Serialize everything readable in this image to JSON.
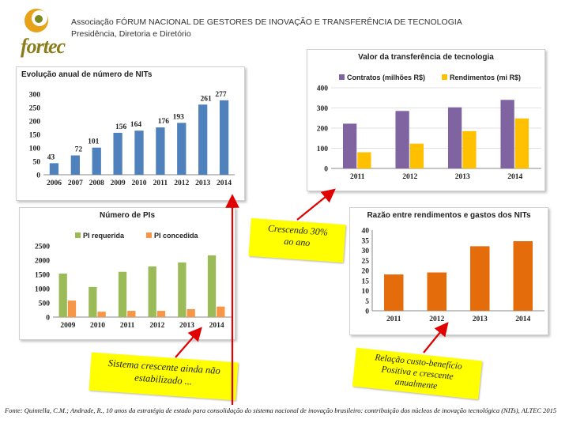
{
  "header": {
    "org": "Associação FÓRUM NACIONAL DE GESTORES DE INOVAÇÃO E TRANSFERÊNCIA DE TECNOLOGIA",
    "subtitle": "Presidência, Diretoria e Diretório",
    "logo_text": "fortec"
  },
  "notes": {
    "growth_line1": "Crescendo 30%",
    "growth_line2": "ao ano",
    "system_line1": "Sistema crescente ainda não",
    "system_line2": "estabilizado ...",
    "relation_line1": "Relação custo-benefício",
    "relation_line2": "Positiva e crescente",
    "relation_line3": "anualmente"
  },
  "source": "Fonte: Quintella, C.M.; Andrade, R., 10 anos da estratégia de estado para consolidação do sistema nacional de inovação brasileiro: contribuição dos núcleos de inovação tecnológica (NITs), ALTEC 2015",
  "colors": {
    "blue": "#4f81bd",
    "purple": "#8064a2",
    "gold": "#ffc000",
    "green": "#9bbb59",
    "orange": "#f79646",
    "darkorange": "#e46c0a",
    "note": "#ffff00",
    "arrow": "#e00000"
  },
  "chart_data": [
    {
      "id": "nits",
      "type": "bar",
      "title": "Evolução anual de número de NITs",
      "categories": [
        "2006",
        "2007",
        "2008",
        "2009",
        "2010",
        "2011",
        "2012",
        "2013",
        "2014"
      ],
      "values": [
        43,
        72,
        101,
        156,
        164,
        176,
        193,
        261,
        277
      ],
      "ylim": [
        0,
        300
      ],
      "yticks": [
        "0",
        "50",
        "100",
        "150",
        "200",
        "250",
        "300"
      ],
      "color": "#4f81bd",
      "data_labels": [
        "43",
        "72",
        "101",
        "156",
        "164",
        "176",
        "193",
        "261",
        "277"
      ]
    },
    {
      "id": "transfer",
      "type": "bar",
      "title": "Valor da transferência de tecnologia",
      "categories": [
        "2011",
        "2012",
        "2013",
        "2014"
      ],
      "series": [
        {
          "name": "Contratos (milhões R$)",
          "values": [
            222,
            285,
            303,
            340
          ],
          "color": "#8064a2"
        },
        {
          "name": "Rendimentos (mi R$)",
          "values": [
            80,
            123,
            185,
            248
          ],
          "color": "#ffc000"
        }
      ],
      "ylim": [
        0,
        400
      ],
      "yticks": [
        "0",
        "100",
        "200",
        "300",
        "400"
      ],
      "legend": "top"
    },
    {
      "id": "pis",
      "type": "bar",
      "title": "Número de PIs",
      "categories": [
        "2009",
        "2010",
        "2011",
        "2012",
        "2013",
        "2014"
      ],
      "series": [
        {
          "name": "PI requerida",
          "values": [
            1530,
            1060,
            1590,
            1780,
            1920,
            2170
          ],
          "color": "#9bbb59"
        },
        {
          "name": "PI concedida",
          "values": [
            580,
            190,
            220,
            220,
            280,
            370
          ],
          "color": "#f79646"
        }
      ],
      "ylim": [
        0,
        2500
      ],
      "yticks": [
        "0",
        "500",
        "1000",
        "1500",
        "2000",
        "2500"
      ],
      "legend": "top"
    },
    {
      "id": "ratio",
      "type": "bar",
      "title": "Razão entre rendimentos e gastos dos NITs",
      "categories": [
        "2011",
        "2012",
        "2013",
        "2014"
      ],
      "values": [
        18,
        19,
        32,
        34.5
      ],
      "ylim": [
        0,
        40
      ],
      "yticks": [
        "0",
        "5",
        "10",
        "15",
        "20",
        "25",
        "30",
        "35",
        "40"
      ],
      "color": "#e46c0a"
    }
  ]
}
